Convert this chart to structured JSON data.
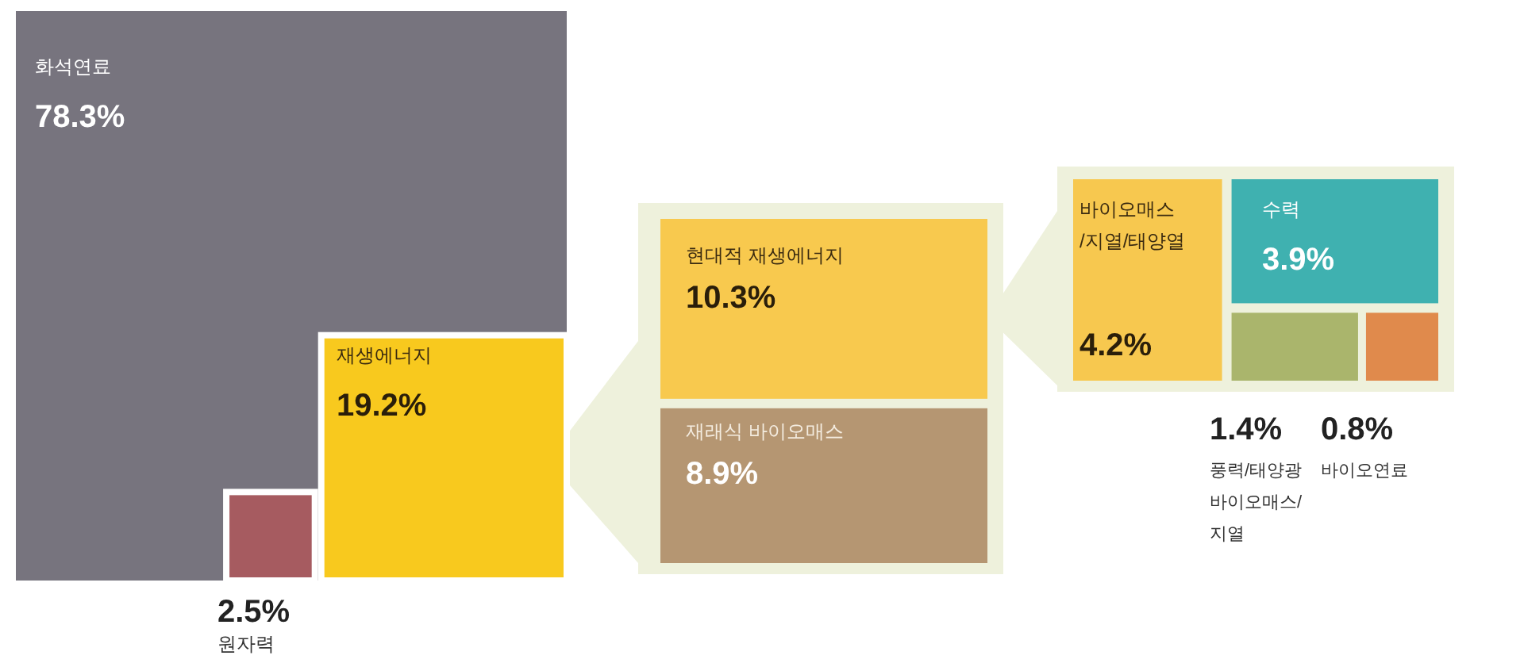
{
  "chart_data": {
    "type": "other",
    "categories": [
      "화석연료",
      "재생에너지",
      "원자력",
      "현대적 재생에너지",
      "재래식 바이오매스",
      "바이오매스\n/지열/태양열",
      "수력",
      "풍력/태양광\n바이오매스/\n지열",
      "바이오연료"
    ],
    "values": [
      78.3,
      19.2,
      2.5,
      10.3,
      8.9,
      4.2,
      3.9,
      1.4,
      0.8
    ],
    "value_labels": [
      "78.3%",
      "19.2%",
      "2.5%",
      "10.3%",
      "8.9%",
      "4.2%",
      "3.9%",
      "1.4%",
      "0.8%"
    ],
    "colors": [
      "#77747e",
      "#f8c91e",
      "#a65b60",
      "#f8c94e",
      "#b59672",
      "#f7c84f",
      "#3fb1b0",
      "#aab56c",
      "#e08a4c"
    ]
  }
}
